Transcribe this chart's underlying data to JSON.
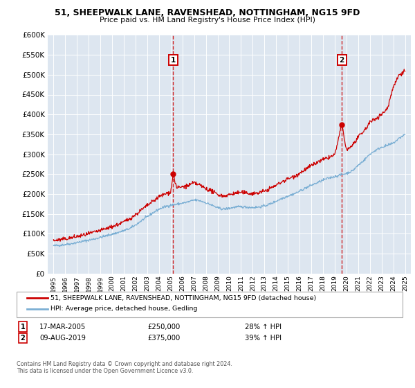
{
  "title": "51, SHEEPWALK LANE, RAVENSHEAD, NOTTINGHAM, NG15 9FD",
  "subtitle": "Price paid vs. HM Land Registry's House Price Index (HPI)",
  "legend_line1": "51, SHEEPWALK LANE, RAVENSHEAD, NOTTINGHAM, NG15 9FD (detached house)",
  "legend_line2": "HPI: Average price, detached house, Gedling",
  "sale1_label": "17-MAR-2005",
  "sale1_price": 250000,
  "sale1_price_str": "£250,000",
  "sale1_pct": "28% ↑ HPI",
  "sale1_x": 2005.21,
  "sale2_label": "09-AUG-2019",
  "sale2_price": 375000,
  "sale2_price_str": "£375,000",
  "sale2_pct": "39% ↑ HPI",
  "sale2_x": 2019.61,
  "footer1": "Contains HM Land Registry data © Crown copyright and database right 2024.",
  "footer2": "This data is licensed under the Open Government Licence v3.0.",
  "hpi_color": "#7bafd4",
  "property_color": "#cc0000",
  "background_color": "#dde6f0",
  "ylim": [
    0,
    600000
  ],
  "yticks": [
    0,
    50000,
    100000,
    150000,
    200000,
    250000,
    300000,
    350000,
    400000,
    450000,
    500000,
    550000,
    600000
  ],
  "xlim_start": 1994.5,
  "xlim_end": 2025.5,
  "hpi_x": [
    1995.0,
    1995.5,
    1996.0,
    1996.5,
    1997.0,
    1997.5,
    1998.0,
    1998.5,
    1999.0,
    1999.5,
    2000.0,
    2000.5,
    2001.0,
    2001.5,
    2002.0,
    2002.5,
    2003.0,
    2003.5,
    2004.0,
    2004.5,
    2005.0,
    2005.5,
    2006.0,
    2006.5,
    2007.0,
    2007.5,
    2008.0,
    2008.5,
    2009.0,
    2009.5,
    2010.0,
    2010.5,
    2011.0,
    2011.5,
    2012.0,
    2012.5,
    2013.0,
    2013.5,
    2014.0,
    2014.5,
    2015.0,
    2015.5,
    2016.0,
    2016.5,
    2017.0,
    2017.5,
    2018.0,
    2018.5,
    2019.0,
    2019.5,
    2020.0,
    2020.5,
    2021.0,
    2021.5,
    2022.0,
    2022.5,
    2023.0,
    2023.5,
    2024.0,
    2024.5,
    2025.0
  ],
  "hpi_y": [
    70000,
    71000,
    73000,
    75000,
    78000,
    81000,
    84000,
    87000,
    91000,
    95000,
    99000,
    103000,
    108000,
    113000,
    122000,
    133000,
    143000,
    153000,
    162000,
    168000,
    172000,
    174000,
    177000,
    180000,
    185000,
    183000,
    178000,
    172000,
    165000,
    162000,
    164000,
    167000,
    168000,
    167000,
    166000,
    167000,
    170000,
    175000,
    182000,
    189000,
    195000,
    200000,
    207000,
    215000,
    222000,
    228000,
    235000,
    240000,
    244000,
    248000,
    252000,
    258000,
    272000,
    285000,
    300000,
    310000,
    318000,
    322000,
    328000,
    340000,
    350000
  ],
  "prop_x": [
    1995.0,
    1995.5,
    1996.0,
    1996.5,
    1997.0,
    1997.5,
    1998.0,
    1998.5,
    1999.0,
    1999.5,
    2000.0,
    2000.5,
    2001.0,
    2001.5,
    2002.0,
    2002.5,
    2003.0,
    2003.5,
    2004.0,
    2004.5,
    2005.0,
    2005.21,
    2005.5,
    2006.0,
    2006.5,
    2007.0,
    2007.5,
    2008.0,
    2008.5,
    2009.0,
    2009.5,
    2010.0,
    2010.5,
    2011.0,
    2011.5,
    2012.0,
    2012.5,
    2013.0,
    2013.5,
    2014.0,
    2014.5,
    2015.0,
    2015.5,
    2016.0,
    2016.5,
    2017.0,
    2017.5,
    2018.0,
    2018.5,
    2019.0,
    2019.61,
    2020.0,
    2020.5,
    2021.0,
    2021.5,
    2022.0,
    2022.5,
    2023.0,
    2023.5,
    2024.0,
    2024.5,
    2025.0
  ],
  "prop_y": [
    83000,
    84500,
    87000,
    90000,
    93000,
    96000,
    100000,
    104000,
    108000,
    113000,
    118000,
    123000,
    130000,
    138000,
    148000,
    160000,
    171000,
    182000,
    193000,
    200000,
    205000,
    250000,
    215000,
    218000,
    221000,
    228000,
    222000,
    214000,
    207000,
    199000,
    195000,
    198000,
    202000,
    204000,
    202000,
    201000,
    203000,
    207000,
    214000,
    222000,
    231000,
    238000,
    244000,
    252000,
    262000,
    271000,
    279000,
    286000,
    292000,
    298000,
    375000,
    310000,
    322000,
    342000,
    358000,
    380000,
    390000,
    400000,
    415000,
    470000,
    500000,
    510000
  ],
  "noise_seed": 42
}
